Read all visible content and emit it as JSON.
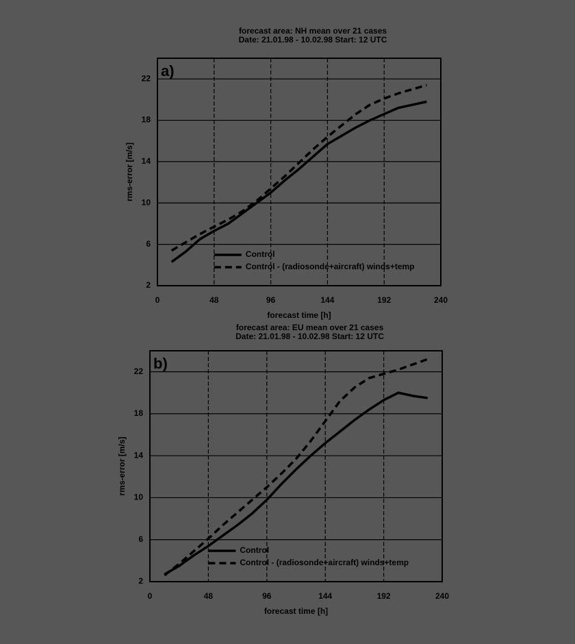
{
  "chart_data": [
    {
      "type": "line",
      "title": "forecast area: NH      mean over 21 cases",
      "subtitle": "Date: 21.01.98 - 10.02.98   Start: 12 UTC",
      "annotation": "a)",
      "xlabel": "forecast time [h]",
      "ylabel": "rms-error [m/s]",
      "x": [
        12,
        24,
        36,
        48,
        60,
        72,
        84,
        96,
        108,
        120,
        132,
        144,
        156,
        168,
        180,
        192,
        204,
        216,
        228
      ],
      "series": [
        {
          "name": "Control",
          "color": "#000000",
          "linestyle": "solid",
          "values": [
            4.3,
            5.3,
            6.5,
            7.3,
            8.0,
            9.0,
            10.0,
            11.0,
            12.2,
            13.3,
            14.5,
            15.7,
            16.5,
            17.3,
            18.0,
            18.6,
            19.2,
            19.5,
            19.8
          ]
        },
        {
          "name": "Control - (radiosonde+aircraft) winds+temp",
          "color": "#000000",
          "linestyle": "dashed",
          "values": [
            5.4,
            6.2,
            7.0,
            7.7,
            8.4,
            9.2,
            10.2,
            11.4,
            12.6,
            13.9,
            15.2,
            16.4,
            17.5,
            18.6,
            19.5,
            20.1,
            20.6,
            21.0,
            21.4
          ]
        }
      ],
      "xlim": [
        0,
        240
      ],
      "xticks": [
        0,
        48,
        96,
        144,
        192,
        240
      ],
      "ylim": [
        2,
        24
      ],
      "yticks": [
        2,
        6,
        10,
        14,
        18,
        22
      ],
      "grid": true,
      "legend": "lower right"
    },
    {
      "type": "line",
      "title": "forecast area: EU      mean over 21 cases",
      "subtitle": "Date: 21.01.98 - 10.02.98   Start: 12 UTC",
      "annotation": "b)",
      "xlabel": "forecast time [h]",
      "ylabel": "rms-error [m/s]",
      "x": [
        12,
        24,
        36,
        48,
        60,
        72,
        84,
        96,
        108,
        120,
        132,
        144,
        156,
        168,
        180,
        192,
        204,
        216,
        228
      ],
      "series": [
        {
          "name": "Control",
          "color": "#000000",
          "linestyle": "solid",
          "values": [
            2.7,
            3.5,
            4.5,
            5.4,
            6.4,
            7.4,
            8.5,
            9.8,
            11.3,
            12.7,
            14.0,
            15.2,
            16.3,
            17.4,
            18.4,
            19.3,
            20.0,
            19.7,
            19.5
          ]
        },
        {
          "name": "Control - (radiosonde+aircraft) winds+temp",
          "color": "#000000",
          "linestyle": "dashed",
          "values": [
            2.6,
            3.7,
            4.9,
            6.1,
            7.4,
            8.6,
            9.8,
            11.0,
            12.3,
            13.7,
            15.4,
            17.3,
            19.2,
            20.5,
            21.4,
            21.8,
            22.2,
            22.7,
            23.2
          ]
        }
      ],
      "xlim": [
        0,
        240
      ],
      "xticks": [
        0,
        48,
        96,
        144,
        192,
        240
      ],
      "ylim": [
        2,
        24
      ],
      "yticks": [
        2,
        6,
        10,
        14,
        18,
        22
      ],
      "grid": true,
      "legend": "lower right"
    }
  ]
}
